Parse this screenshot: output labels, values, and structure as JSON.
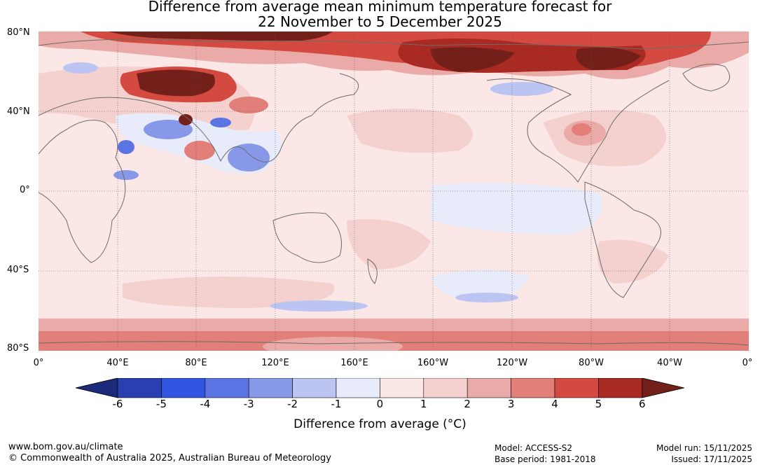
{
  "title": {
    "line1": "Difference from average mean minimum temperature forecast for",
    "line2": "22 November to 5 December 2025"
  },
  "map": {
    "lat_labels": [
      "80°N",
      "40°N",
      "0°",
      "40°S",
      "80°S"
    ],
    "lon_labels": [
      "0°",
      "40°E",
      "80°E",
      "120°E",
      "160°E",
      "160°W",
      "120°W",
      "80°W",
      "40°W",
      "0°"
    ]
  },
  "colorbar": {
    "ticks": [
      "-6",
      "-5",
      "-4",
      "-3",
      "-2",
      "-1",
      "0",
      "1",
      "2",
      "3",
      "4",
      "5",
      "6"
    ],
    "colors": [
      "#1c2a7a",
      "#2a40b0",
      "#3155e0",
      "#5b74e4",
      "#8898e8",
      "#bcc4f2",
      "#e8ebfa",
      "#fbe8e6",
      "#f4d1cf",
      "#eaaba8",
      "#e27f79",
      "#d54a40",
      "#a92a22",
      "#74201a"
    ],
    "label": "Difference from average (°C)"
  },
  "footer": {
    "url": "www.bom.gov.au/climate",
    "copyright": "© Commonwealth of Australia 2025, Australian Bureau of Meteorology",
    "model": "Model: ACCESS-S2",
    "base_period": "Base period: 1981-2018",
    "model_run": "Model run: 15/11/2025",
    "issued": "Issued: 17/11/2025"
  }
}
